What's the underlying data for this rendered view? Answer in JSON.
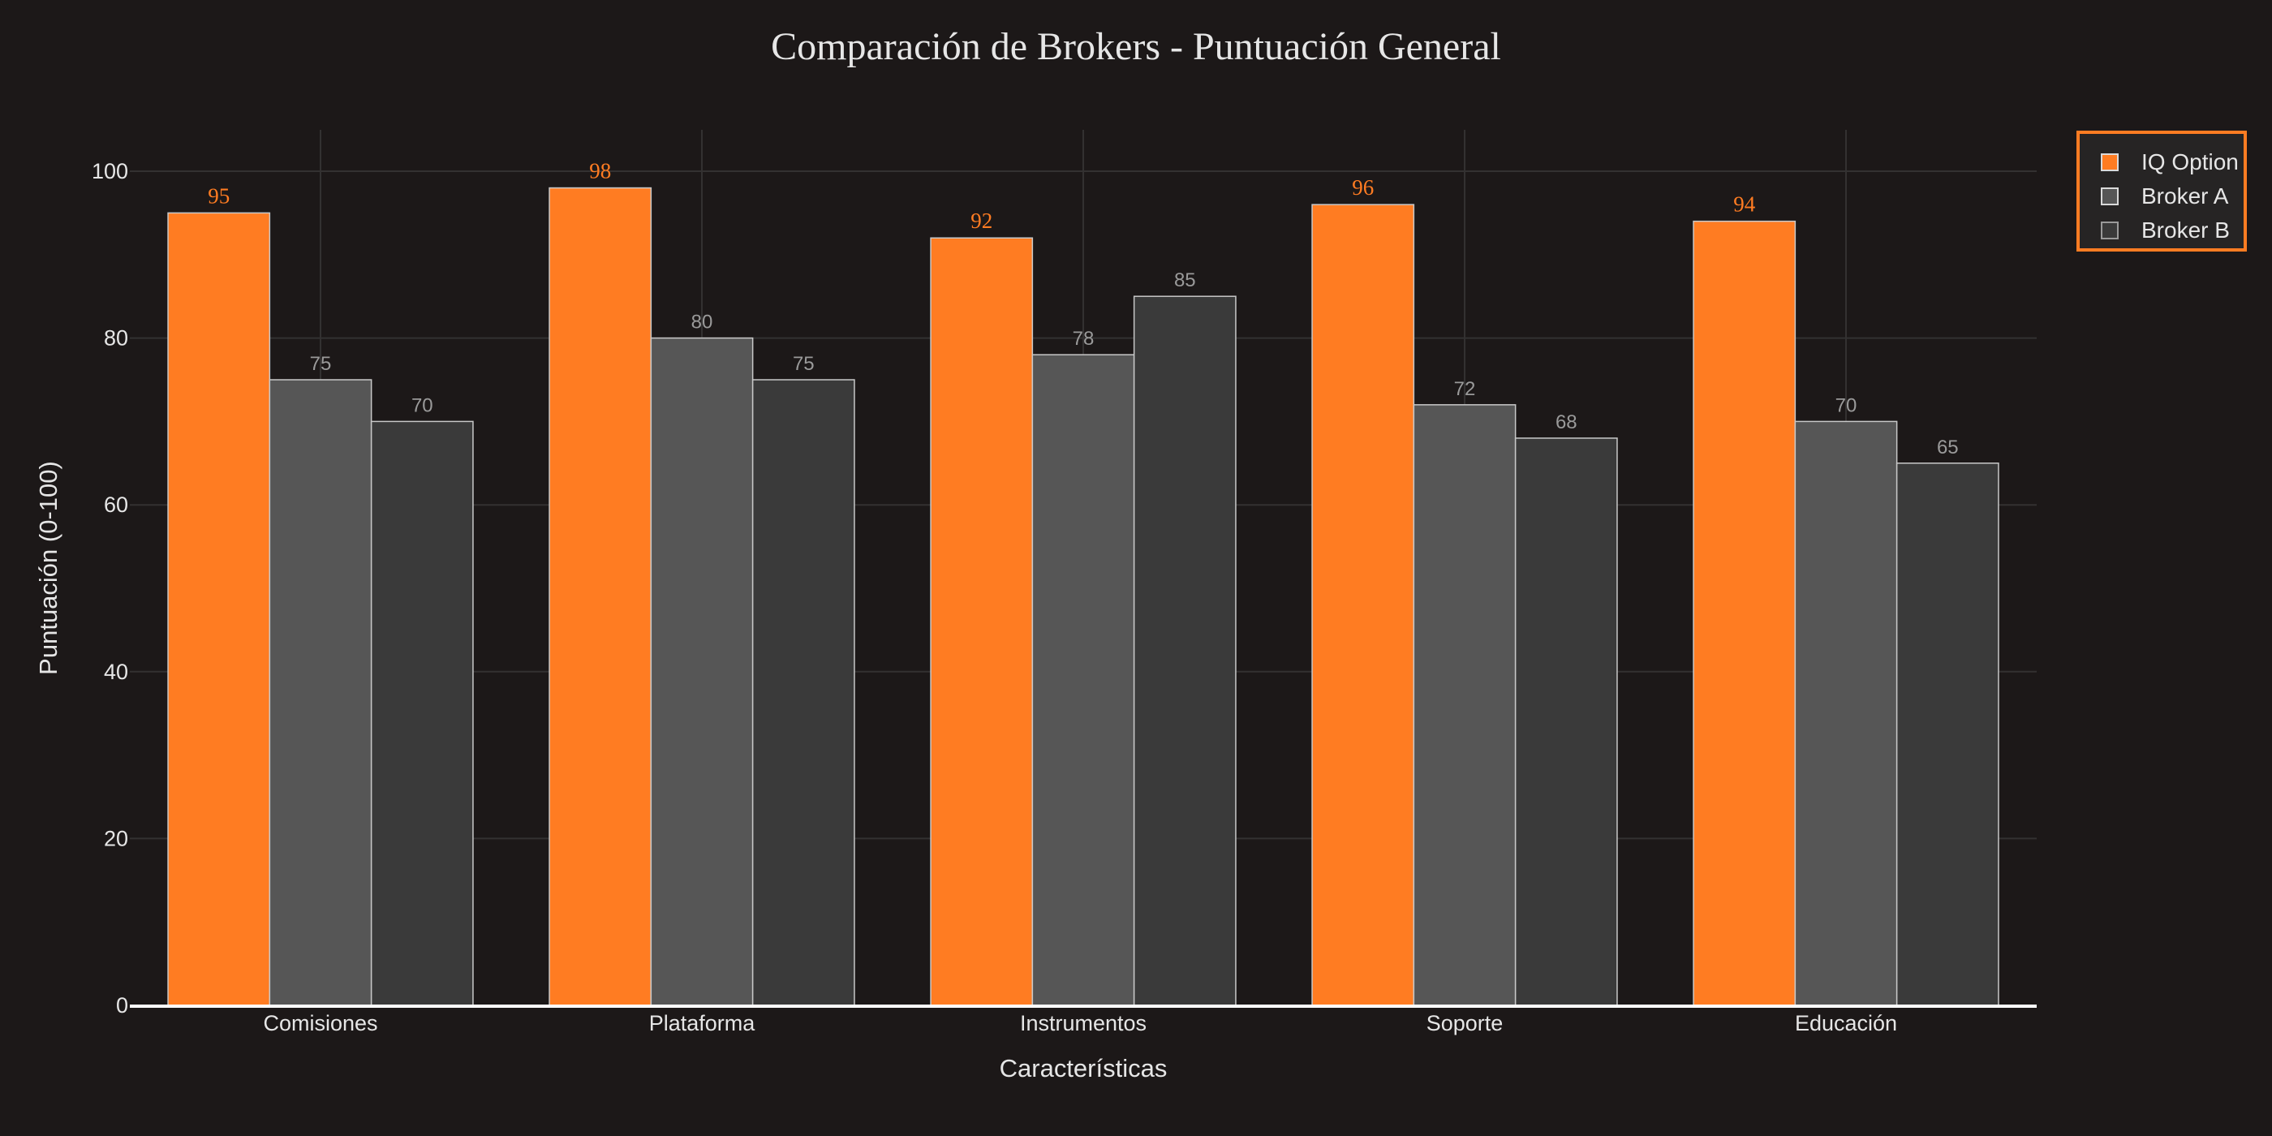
{
  "title": "Comparación de Brokers - Puntuación General",
  "colors": {
    "background": "#1c1818",
    "grid": "#333131",
    "axis_line": "#ffffff",
    "iq_option": "#ff7c22",
    "broker_a": "#565656",
    "broker_b": "#3a3a3a",
    "bar_outline": "#c8c8c8",
    "label_grey": "#9a9a9a",
    "text": "#e6e6e6"
  },
  "legend": {
    "items": [
      {
        "label": "IQ Option",
        "color": "#ff7c22"
      },
      {
        "label": "Broker A",
        "color": "#565656"
      },
      {
        "label": "Broker B",
        "color": "#3a3a3a"
      }
    ]
  },
  "chart_data": {
    "type": "bar",
    "title": "Comparación de Brokers - Puntuación General",
    "xlabel": "Características",
    "ylabel": "Puntuación (0-100)",
    "categories": [
      "Comisiones",
      "Plataforma",
      "Instrumentos",
      "Soporte",
      "Educación"
    ],
    "series": [
      {
        "name": "IQ Option",
        "values": [
          95,
          98,
          92,
          96,
          94
        ],
        "color": "#ff7c22"
      },
      {
        "name": "Broker A",
        "values": [
          75,
          80,
          78,
          72,
          70
        ],
        "color": "#565656"
      },
      {
        "name": "Broker B",
        "values": [
          70,
          75,
          85,
          68,
          65
        ],
        "color": "#3a3a3a"
      }
    ],
    "ylim": [
      0,
      105
    ],
    "yticks": [
      0,
      20,
      40,
      60,
      80,
      100
    ],
    "grid": true,
    "legend_position": "top-right",
    "data_labels": true,
    "barmode": "group"
  }
}
